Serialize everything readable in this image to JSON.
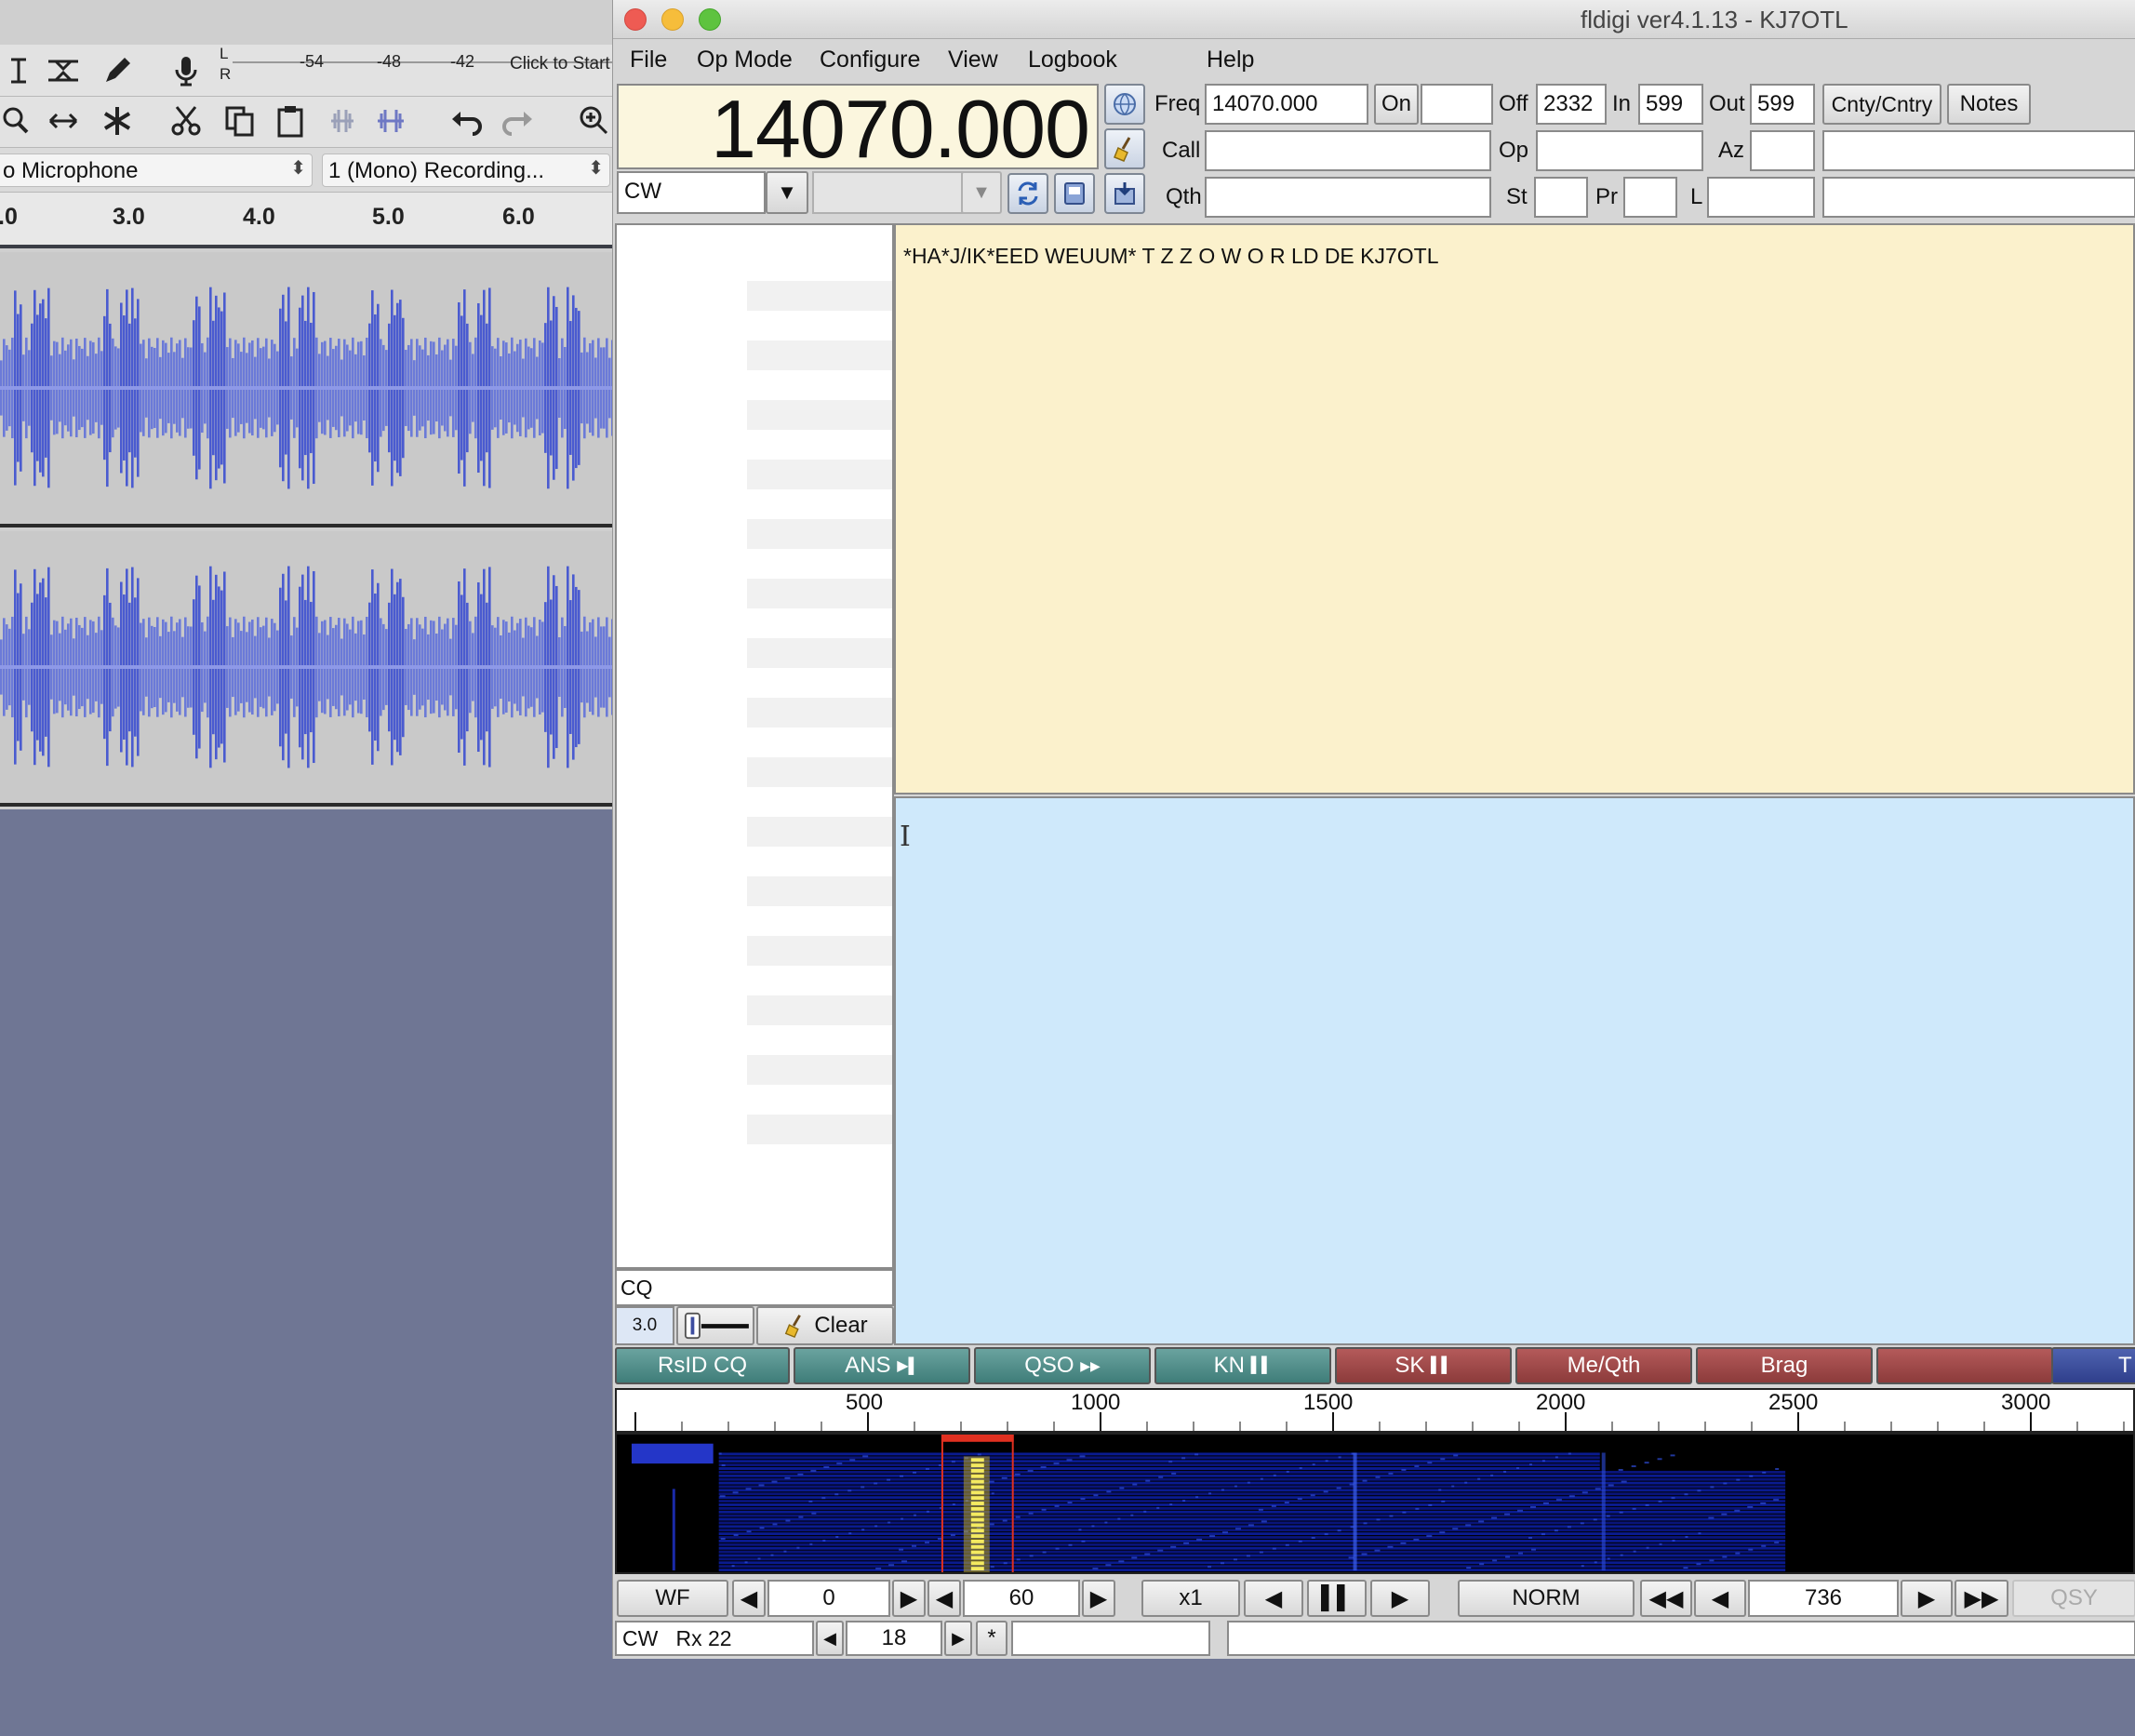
{
  "audacity": {
    "meter": {
      "channels": [
        "L",
        "R"
      ],
      "ticks": [
        "-54",
        "-48",
        "-42"
      ],
      "start_hint": "Click to Start"
    },
    "input_device": "o Microphone",
    "channels": "1 (Mono) Recording...",
    "ruler_ticks": [
      ".0",
      "3.0",
      "4.0",
      "5.0",
      "6.0"
    ]
  },
  "fldigi": {
    "window_title": "fldigi ver4.1.13 - KJ7OTL",
    "menu": [
      "File",
      "Op Mode",
      "Configure",
      "View",
      "Logbook",
      "Help"
    ],
    "frequency_display": "14070.000",
    "mode": "CW",
    "log": {
      "freq_label": "Freq",
      "freq_value": "14070.000",
      "on_label": "On",
      "on_value": "",
      "off_label": "Off",
      "off_value": "2332",
      "in_label": "In",
      "in_value": "599",
      "out_label": "Out",
      "out_value": "599",
      "cnty_label": "Cnty/Cntry",
      "notes_label": "Notes",
      "call_label": "Call",
      "call_value": "",
      "op_label": "Op",
      "op_value": "",
      "az_label": "Az",
      "az_value": "",
      "qth_label": "Qth",
      "qth_value": "",
      "st_label": "St",
      "st_value": "",
      "pr_label": "Pr",
      "pr_value": "",
      "l_label": "L",
      "l_value": ""
    },
    "rx_text": "*HA*J/IK*EED WEUUM* T Z Z O W O R LD DE KJ7OTL",
    "tx_text": "",
    "browser_search": "CQ",
    "squelch_level": "3.0",
    "clear_label": "Clear",
    "macros": [
      {
        "label": "RsID CQ",
        "color": "green"
      },
      {
        "label": "ANS",
        "glyph": "▶▌",
        "color": "green"
      },
      {
        "label": "QSO",
        "glyph": "▶▶",
        "color": "green"
      },
      {
        "label": "KN",
        "glyph": "▌▌",
        "color": "green"
      },
      {
        "label": "SK",
        "glyph": "▌▌",
        "color": "red"
      },
      {
        "label": "Me/Qth",
        "color": "red"
      },
      {
        "label": "Brag",
        "color": "red"
      },
      {
        "label": "",
        "color": "red"
      },
      {
        "label": "T",
        "color": "blue"
      }
    ],
    "waterfall": {
      "scale_labels": [
        "500",
        "1000",
        "1500",
        "2000",
        "2500",
        "3000"
      ],
      "cursor_freq_hz": 736
    },
    "controls": {
      "wf_label": "WF",
      "wf_low": "0",
      "wf_range": "60",
      "zoom": "x1",
      "speed": "NORM",
      "carrier": "736",
      "qsy_label": "QSY"
    },
    "status": {
      "mode_status": "CW   Rx 22",
      "tx_level": "18",
      "star": "*",
      "field_a": "",
      "field_b": ""
    }
  }
}
